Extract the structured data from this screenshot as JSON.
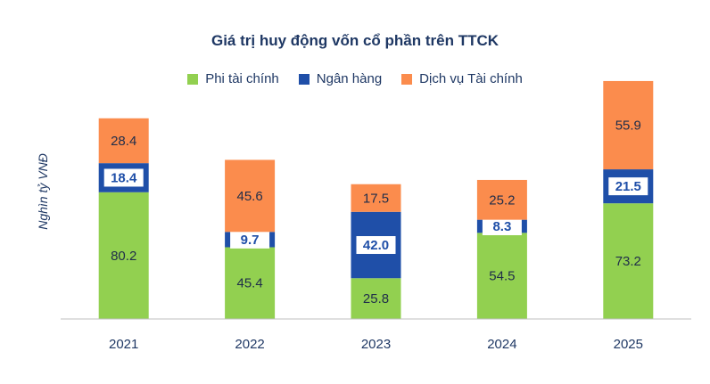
{
  "chart_data": {
    "type": "bar",
    "stacked": true,
    "title": "Giá trị huy động vốn cổ phần trên TTCK",
    "xlabel": "",
    "ylabel": "Nghìn tỷ VNĐ",
    "categories": [
      "2021",
      "2022",
      "2023",
      "2024",
      "2025"
    ],
    "series": [
      {
        "name": "Phi tài chính",
        "color": "#92d050",
        "values": [
          80.2,
          45.4,
          25.8,
          54.5,
          73.2
        ]
      },
      {
        "name": "Ngân hàng",
        "color": "#1f4fa8",
        "values": [
          18.4,
          9.7,
          42.0,
          8.3,
          21.5
        ]
      },
      {
        "name": "Dịch vụ Tài chính",
        "color": "#fb8c4d",
        "values": [
          28.4,
          45.6,
          17.5,
          25.2,
          55.9
        ]
      }
    ],
    "ylim": [
      0,
      150
    ],
    "grid": false,
    "legend_position": "top"
  }
}
